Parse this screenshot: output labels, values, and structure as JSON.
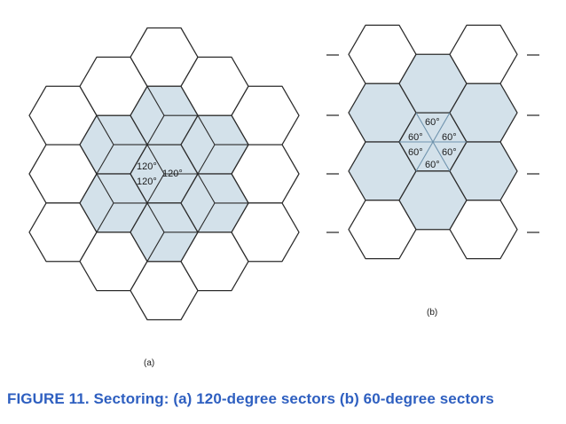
{
  "caption": "FIGURE 11.  Sectoring: (a) 120-degree sectors  (b) 60-degree sectors",
  "diagram_a": {
    "label": "(a)",
    "angles": [
      "120°",
      "120°",
      "120°"
    ]
  },
  "diagram_b": {
    "label": "(b)",
    "angles": [
      "60°",
      "60°",
      "60°",
      "60°",
      "60°",
      "60°"
    ]
  },
  "colors": {
    "shade": "#d3e1ea",
    "stroke": "#2b2b2b",
    "sector_light": "#6f93ad",
    "caption": "#2e5fc0"
  }
}
